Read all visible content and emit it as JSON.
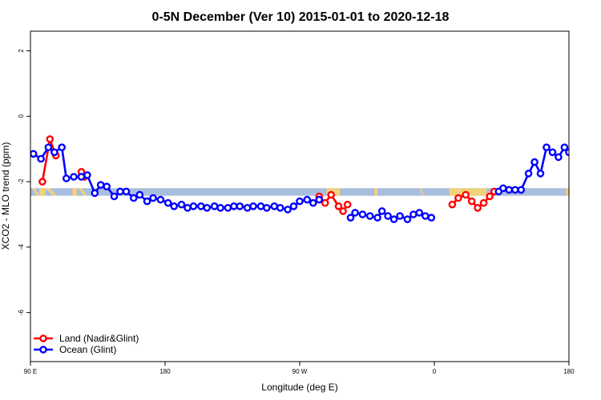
{
  "chart_data": {
    "type": "line",
    "title": "0-5N December (Ver 10)   2015-01-01 to 2020-12-18",
    "xlabel": "Longitude (deg E)",
    "ylabel": "XCO2 - MLO trend (ppm)",
    "xlim": [
      90,
      450
    ],
    "ylim": [
      -7.5,
      2.6
    ],
    "xticks": [
      {
        "value": 90,
        "label": "90 E"
      },
      {
        "value": 180,
        "label": "180"
      },
      {
        "value": 270,
        "label": "90 W"
      },
      {
        "value": 360,
        "label": "0"
      },
      {
        "value": 450,
        "label": "180"
      }
    ],
    "yticks": [
      {
        "value": 2,
        "label": "2"
      },
      {
        "value": 0,
        "label": "0"
      },
      {
        "value": -2,
        "label": "-2"
      },
      {
        "value": -4,
        "label": "-4"
      },
      {
        "value": -6,
        "label": "-6"
      }
    ],
    "grid": false,
    "legend_position": "bottom-left",
    "surface_strip": {
      "y_range": [
        -2.43,
        -2.2
      ],
      "ocean_color": "#a8bedf",
      "land_color": "#f2d27a",
      "land_spans": [
        [
          96,
          100
        ],
        [
          118,
          121
        ],
        [
          288,
          297
        ],
        [
          320,
          322
        ],
        [
          370,
          395
        ],
        [
          448,
          450
        ]
      ],
      "coastal_hatch_spans": [
        [
          91,
          96
        ],
        [
          100,
          108
        ],
        [
          122,
          128
        ],
        [
          350,
          353
        ],
        [
          455,
          462
        ],
        [
          461,
          468
        ]
      ]
    },
    "series": [
      {
        "name": "Land (Nadir&Glint)",
        "color": "#ff0000",
        "segments": [
          {
            "x": [
              98,
              103,
              107
            ],
            "y": [
              -2.0,
              -0.7,
              -1.2
            ]
          },
          {
            "x": [
              124,
              126
            ],
            "y": [
              -1.7,
              -1.85
            ]
          },
          {
            "x": [
              283,
              287,
              291,
              296,
              299,
              302
            ],
            "y": [
              -2.45,
              -2.65,
              -2.4,
              -2.75,
              -2.9,
              -2.7
            ]
          },
          {
            "x": [
              372,
              376,
              381,
              385,
              389,
              393,
              397,
              400
            ],
            "y": [
              -2.7,
              -2.5,
              -2.4,
              -2.6,
              -2.8,
              -2.65,
              -2.45,
              -2.3
            ]
          },
          {
            "x": [
              458,
              462,
              465
            ],
            "y": [
              -2.0,
              -0.7,
              -1.2
            ]
          },
          {
            "x": [
              484,
              486
            ],
            "y": [
              -1.7,
              -1.85
            ]
          }
        ]
      },
      {
        "name": "Ocean (Glint)",
        "color": "#0000ff",
        "segments": [
          {
            "x": [
              92,
              97,
              102,
              106,
              111,
              114,
              119,
              124,
              128,
              133,
              137,
              141,
              146,
              150,
              154,
              159,
              163,
              168,
              172,
              177,
              182,
              186,
              191,
              195,
              199,
              204,
              208,
              213,
              217,
              222,
              226,
              230,
              235,
              239,
              244,
              248,
              253,
              257,
              262,
              266,
              270,
              275,
              279,
              283
            ],
            "y": [
              -1.15,
              -1.3,
              -0.95,
              -1.1,
              -0.95,
              -1.9,
              -1.85,
              -1.85,
              -1.8,
              -2.35,
              -2.1,
              -2.15,
              -2.45,
              -2.3,
              -2.3,
              -2.5,
              -2.4,
              -2.6,
              -2.5,
              -2.55,
              -2.65,
              -2.75,
              -2.7,
              -2.8,
              -2.75,
              -2.75,
              -2.8,
              -2.75,
              -2.8,
              -2.8,
              -2.75,
              -2.75,
              -2.8,
              -2.75,
              -2.75,
              -2.8,
              -2.75,
              -2.8,
              -2.85,
              -2.75,
              -2.6,
              -2.55,
              -2.65,
              -2.55
            ]
          },
          {
            "x": [
              304,
              307,
              312,
              317,
              322,
              325,
              329,
              333,
              337,
              342,
              346,
              350,
              354,
              358
            ],
            "y": [
              -3.1,
              -2.95,
              -3.0,
              -3.05,
              -3.1,
              -2.9,
              -3.05,
              -3.15,
              -3.05,
              -3.15,
              -3.0,
              -2.95,
              -3.05,
              -3.1
            ]
          },
          {
            "x": [
              403,
              406,
              410,
              414,
              418,
              423,
              427,
              431,
              435,
              439,
              443,
              447,
              450
            ],
            "y": [
              -2.3,
              -2.2,
              -2.25,
              -2.25,
              -2.25,
              -1.75,
              -1.4,
              -1.75,
              -0.95,
              -1.1,
              -1.25,
              -0.95,
              -1.1
            ]
          },
          {
            "x": [
              454,
              458,
              462,
              466,
              469
            ],
            "y": [
              -0.95,
              -1.1,
              -0.95,
              -1.15,
              -1.25
            ]
          },
          {
            "x": [
              478,
              484,
              488,
              493,
              497,
              501,
              506,
              510,
              515,
              519,
              524,
              528
            ],
            "y": [
              -1.85,
              -1.85,
              -1.85,
              -1.8,
              -2.35,
              -2.1,
              -2.15,
              -2.45,
              -2.3,
              -2.3,
              -2.5,
              -2.4
            ]
          }
        ]
      }
    ]
  }
}
